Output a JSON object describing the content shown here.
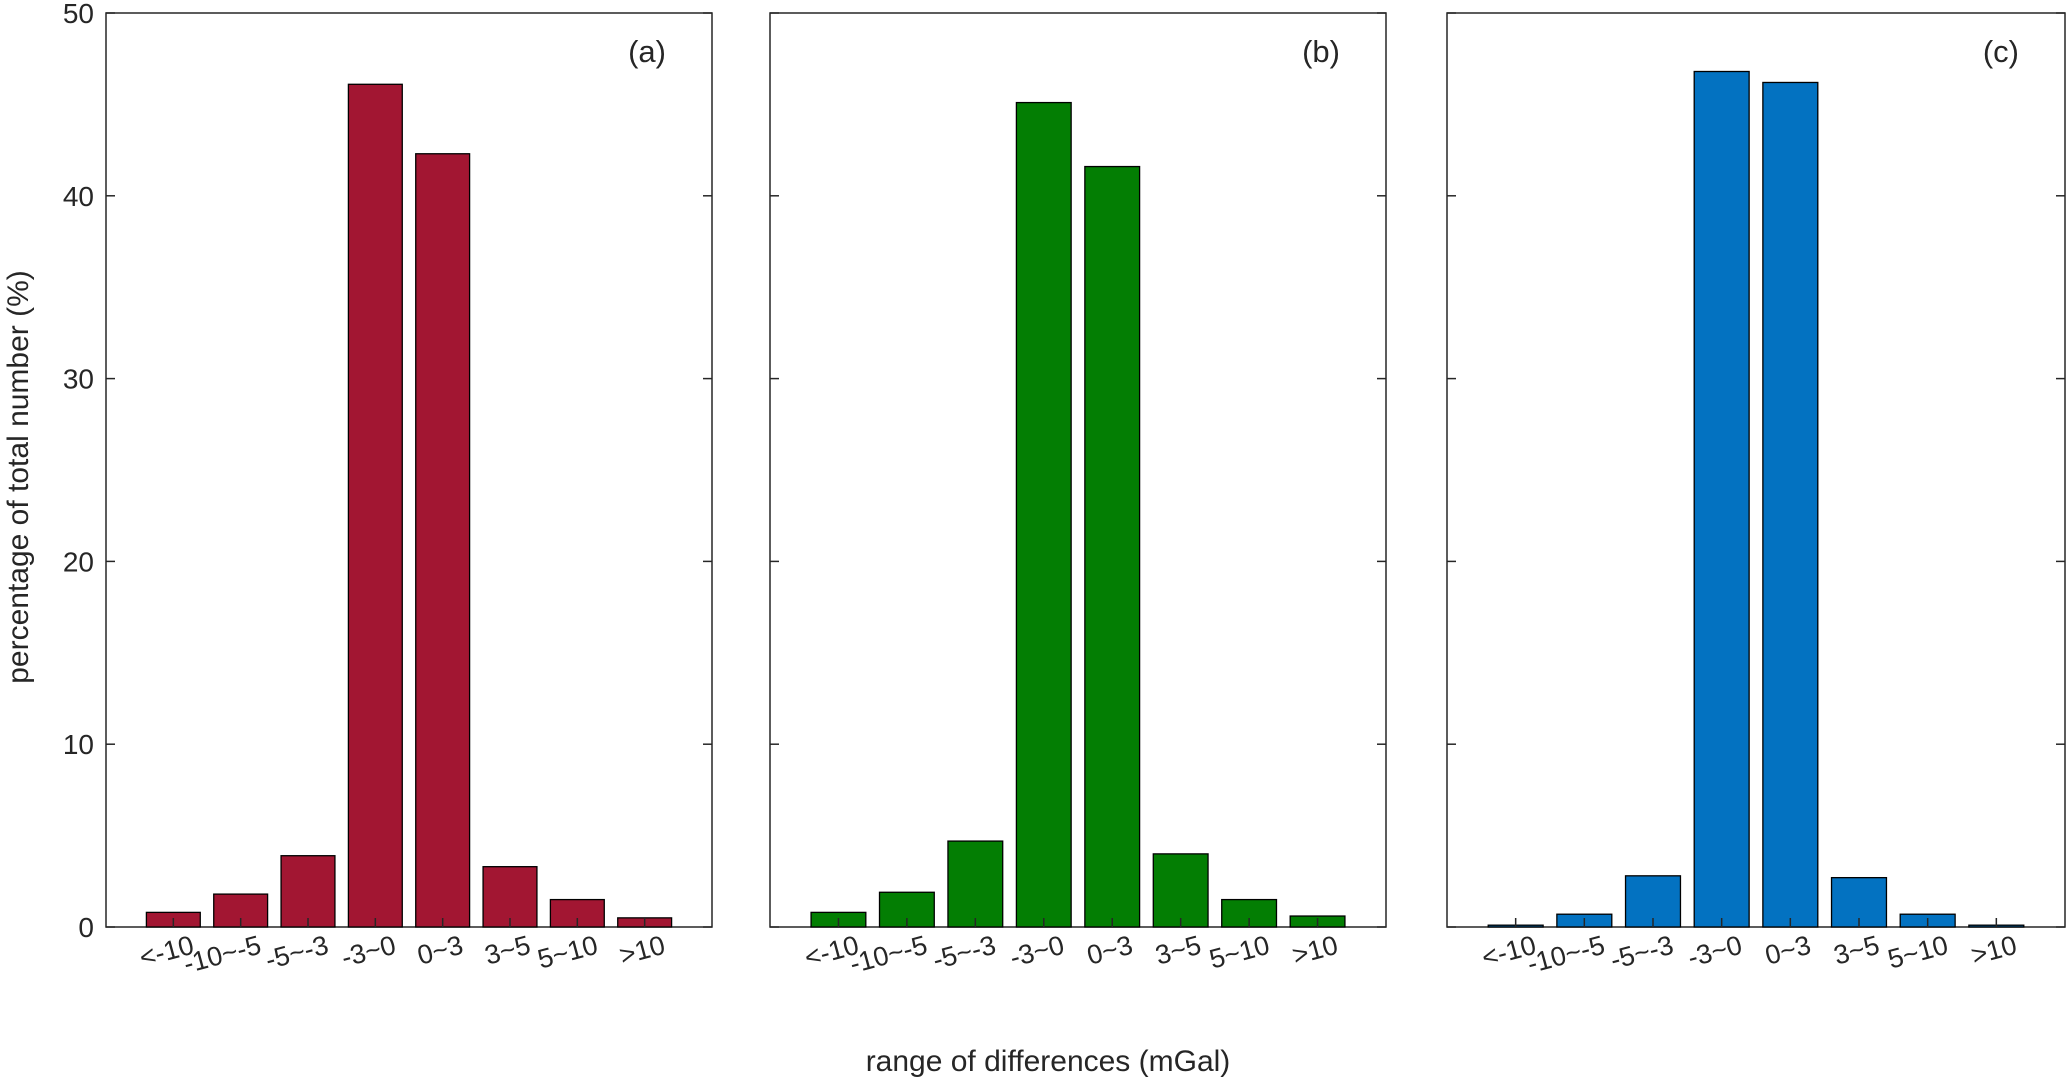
{
  "figure": {
    "ylabel": "percentage of total number (%)",
    "xlabel": "range of differences (mGal)"
  },
  "chart_data": [
    {
      "type": "bar",
      "panel_label": "(a)",
      "categories": [
        "<-10",
        "-10~-5",
        "-5~-3",
        "-3~0",
        "0~3",
        "3~5",
        "5~10",
        ">10"
      ],
      "values": [
        0.8,
        1.8,
        3.9,
        46.1,
        42.3,
        3.3,
        1.5,
        0.5
      ],
      "color": "#a21632",
      "ylim": [
        0,
        50
      ],
      "yticks": [
        0,
        10,
        20,
        30,
        40,
        50
      ],
      "grid": false
    },
    {
      "type": "bar",
      "panel_label": "(b)",
      "categories": [
        "<-10",
        "-10~-5",
        "-5~-3",
        "-3~0",
        "0~3",
        "3~5",
        "5~10",
        ">10"
      ],
      "values": [
        0.8,
        1.9,
        4.7,
        45.1,
        41.6,
        4.0,
        1.5,
        0.6
      ],
      "color": "#037e03",
      "ylim": [
        0,
        50
      ],
      "yticks": [
        0,
        10,
        20,
        30,
        40,
        50
      ],
      "grid": false
    },
    {
      "type": "bar",
      "panel_label": "(c)",
      "categories": [
        "<-10",
        "-10~-5",
        "-5~-3",
        "-3~0",
        "0~3",
        "3~5",
        "5~10",
        ">10"
      ],
      "values": [
        0.1,
        0.7,
        2.8,
        46.8,
        46.2,
        2.7,
        0.7,
        0.1
      ],
      "color": "#0372c1",
      "ylim": [
        0,
        50
      ],
      "yticks": [
        0,
        10,
        20,
        30,
        40,
        50
      ],
      "grid": false
    }
  ]
}
